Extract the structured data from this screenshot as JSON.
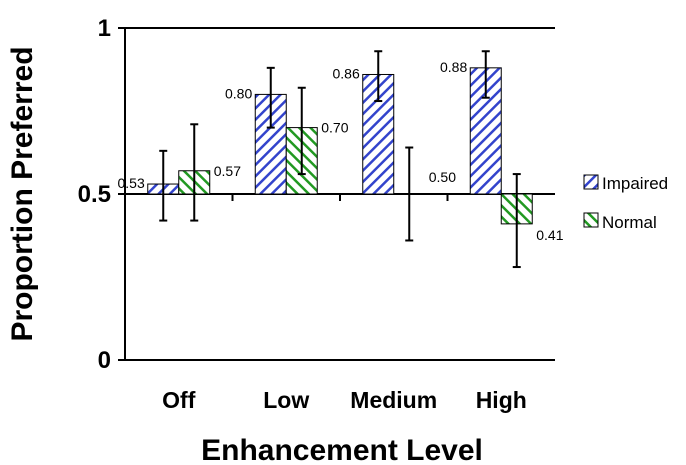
{
  "chart_data": {
    "type": "bar",
    "title": "",
    "xlabel": "Enhancement Level",
    "ylabel": "Proportion Preferred",
    "ylim": [
      0,
      1
    ],
    "yticks": [
      "0",
      "0.5",
      "1"
    ],
    "baseline": 0.5,
    "categories": [
      "Off",
      "Low",
      "Medium",
      "High"
    ],
    "series": [
      {
        "name": "Impaired",
        "color": "#3344cc",
        "values": [
          0.53,
          0.8,
          0.86,
          0.88
        ],
        "labels": [
          "0.53",
          "0.80",
          "0.86",
          "0.88"
        ],
        "err_low": [
          0.42,
          0.7,
          0.78,
          0.79
        ],
        "err_high": [
          0.63,
          0.88,
          0.93,
          0.93
        ]
      },
      {
        "name": "Normal",
        "color": "#229922",
        "values": [
          0.57,
          0.7,
          0.5,
          0.41
        ],
        "labels": [
          "0.57",
          "0.70",
          "0.50",
          "0.41"
        ],
        "err_low": [
          0.42,
          0.56,
          0.36,
          0.28
        ],
        "err_high": [
          0.71,
          0.82,
          0.64,
          0.56
        ]
      }
    ],
    "legend_position": "right",
    "grid": false
  }
}
